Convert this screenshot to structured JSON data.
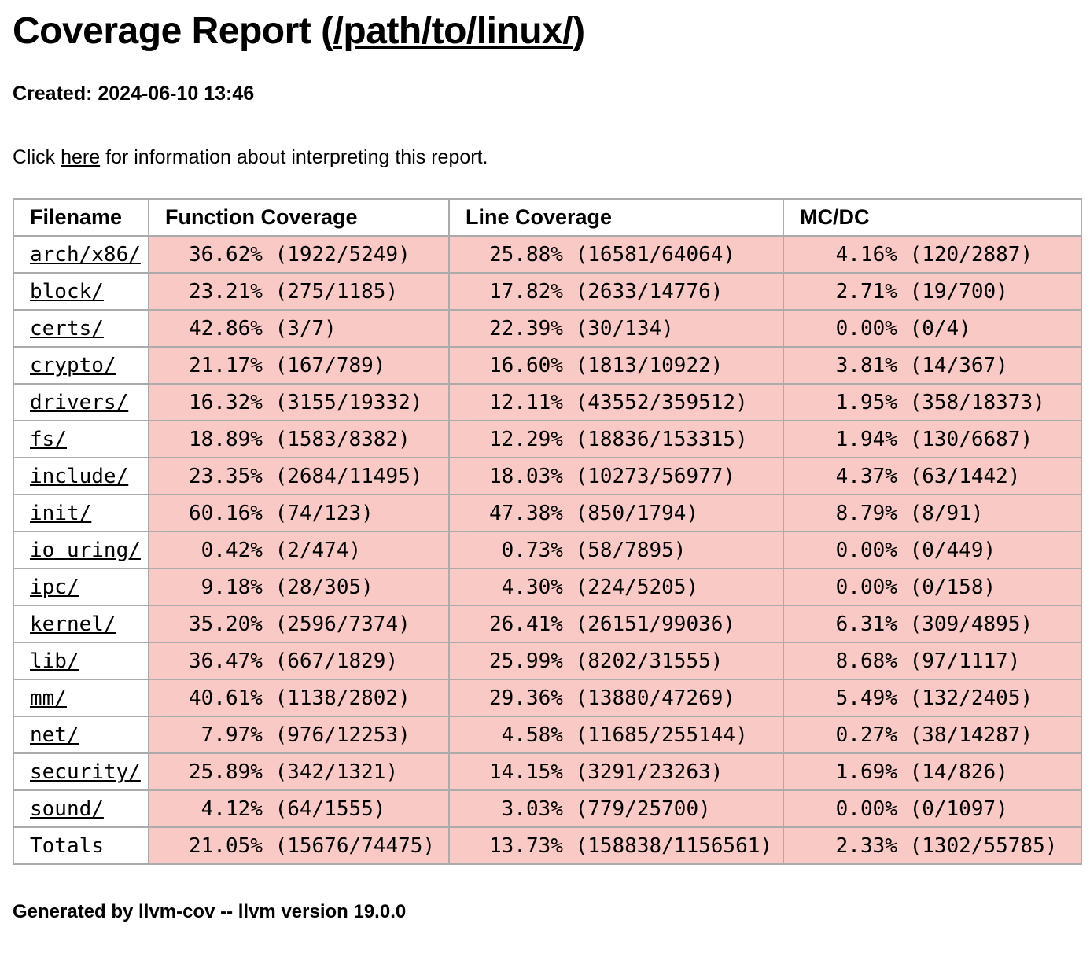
{
  "header": {
    "title_prefix": "Coverage Report (",
    "title_link": "/path/to/linux/",
    "title_suffix": ")",
    "created": "Created: 2024-06-10 13:46"
  },
  "info": {
    "pre": "Click ",
    "link_label": "here",
    "post": " for information about interpreting this report."
  },
  "table": {
    "headers": [
      "Filename",
      "Function Coverage",
      "Line Coverage",
      "MC/DC"
    ],
    "rows": [
      {
        "filename": "arch/x86/",
        "function": "36.62% (1922/5249)",
        "line": "25.88% (16581/64064)",
        "mcdc": " 4.16% (120/2887)"
      },
      {
        "filename": "block/",
        "function": "23.21% (275/1185)",
        "line": "17.82% (2633/14776)",
        "mcdc": " 2.71% (19/700)"
      },
      {
        "filename": "certs/",
        "function": "42.86% (3/7)",
        "line": "22.39% (30/134)",
        "mcdc": " 0.00% (0/4)"
      },
      {
        "filename": "crypto/",
        "function": "21.17% (167/789)",
        "line": "16.60% (1813/10922)",
        "mcdc": " 3.81% (14/367)"
      },
      {
        "filename": "drivers/",
        "function": "16.32% (3155/19332)",
        "line": "12.11% (43552/359512)",
        "mcdc": " 1.95% (358/18373)"
      },
      {
        "filename": "fs/",
        "function": "18.89% (1583/8382)",
        "line": "12.29% (18836/153315)",
        "mcdc": " 1.94% (130/6687)"
      },
      {
        "filename": "include/",
        "function": "23.35% (2684/11495)",
        "line": "18.03% (10273/56977)",
        "mcdc": " 4.37% (63/1442)"
      },
      {
        "filename": "init/",
        "function": "60.16% (74/123)",
        "line": "47.38% (850/1794)",
        "mcdc": " 8.79% (8/91)"
      },
      {
        "filename": "io_uring/",
        "function": " 0.42% (2/474)",
        "line": " 0.73% (58/7895)",
        "mcdc": " 0.00% (0/449)"
      },
      {
        "filename": "ipc/",
        "function": " 9.18% (28/305)",
        "line": " 4.30% (224/5205)",
        "mcdc": " 0.00% (0/158)"
      },
      {
        "filename": "kernel/",
        "function": "35.20% (2596/7374)",
        "line": "26.41% (26151/99036)",
        "mcdc": " 6.31% (309/4895)"
      },
      {
        "filename": "lib/",
        "function": "36.47% (667/1829)",
        "line": "25.99% (8202/31555)",
        "mcdc": " 8.68% (97/1117)"
      },
      {
        "filename": "mm/",
        "function": "40.61% (1138/2802)",
        "line": "29.36% (13880/47269)",
        "mcdc": " 5.49% (132/2405)"
      },
      {
        "filename": "net/",
        "function": " 7.97% (976/12253)",
        "line": " 4.58% (11685/255144)",
        "mcdc": " 0.27% (38/14287)"
      },
      {
        "filename": "security/",
        "function": "25.89% (342/1321)",
        "line": "14.15% (3291/23263)",
        "mcdc": " 1.69% (14/826)"
      },
      {
        "filename": "sound/",
        "function": " 4.12% (64/1555)",
        "line": " 3.03% (779/25700)",
        "mcdc": " 0.00% (0/1097)"
      },
      {
        "filename": "Totals",
        "function": "21.05% (15676/74475)",
        "line": "13.73% (158838/1156561)",
        "mcdc": " 2.33% (1302/55785)"
      }
    ]
  },
  "footer": {
    "text": "Generated by llvm-cov -- llvm version 19.0.0"
  },
  "colors": {
    "uncovered_cell_background": "#f8c9c5",
    "table_border": "#ababab",
    "text": "#000000"
  }
}
